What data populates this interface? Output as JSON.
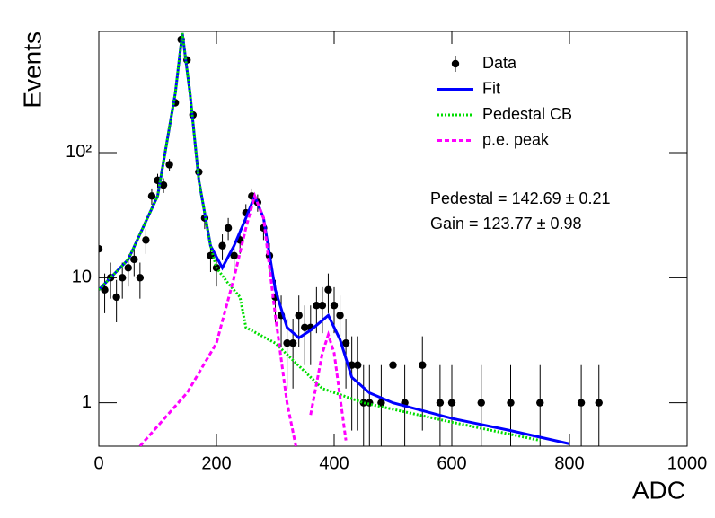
{
  "chart_data": {
    "type": "scatter",
    "xlabel": "ADC",
    "ylabel": "Events",
    "xlim": [
      0,
      1000
    ],
    "xticks": [
      0,
      200,
      400,
      600,
      800,
      1000
    ],
    "ylim": [
      0.45,
      930
    ],
    "ylog": true,
    "yticks": [
      1,
      10,
      {
        "value": 100,
        "label": "10²"
      }
    ],
    "legend": "upper right",
    "annotations": [
      "Pedestal = 142.69 ± 0.21",
      "Gain = 123.77 ± 0.98"
    ],
    "series": [
      {
        "name": "Data",
        "kind": "points",
        "color": "#000000",
        "x": [
          0,
          10,
          20,
          30,
          40,
          50,
          60,
          70,
          80,
          90,
          100,
          110,
          120,
          130,
          140,
          150,
          160,
          170,
          180,
          190,
          200,
          210,
          220,
          230,
          240,
          250,
          260,
          270,
          280,
          290,
          300,
          310,
          320,
          330,
          340,
          350,
          360,
          370,
          380,
          390,
          400,
          410,
          420,
          430,
          440,
          450,
          460,
          480,
          500,
          520,
          550,
          580,
          600,
          650,
          700,
          750,
          820,
          850
        ],
        "values": [
          17,
          8,
          10,
          7,
          10,
          12,
          14,
          10,
          20,
          45,
          60,
          55,
          80,
          250,
          800,
          550,
          200,
          70,
          30,
          15,
          12,
          18,
          25,
          15,
          20,
          33,
          45,
          40,
          25,
          15,
          7,
          5,
          3,
          3,
          5,
          4,
          4,
          6,
          6,
          8,
          6,
          5,
          3,
          2,
          2,
          1,
          1,
          1,
          2,
          1,
          2,
          1,
          1,
          1,
          1,
          1,
          1,
          1
        ],
        "errors": [
          4.1,
          2.8,
          3.2,
          2.6,
          3.2,
          3.5,
          3.7,
          3.2,
          4.5,
          6.7,
          7.7,
          7.4,
          8.9,
          15.8,
          28.3,
          23.5,
          14.1,
          8.4,
          5.5,
          3.9,
          3.5,
          4.2,
          5,
          3.9,
          4.5,
          5.7,
          6.7,
          6.3,
          5,
          3.9,
          2.6,
          2.2,
          1.7,
          1.7,
          2.2,
          2,
          2,
          2.4,
          2.4,
          2.8,
          2.4,
          2.2,
          1.7,
          1.4,
          1.4,
          1,
          1,
          1,
          1.4,
          1,
          1.4,
          1,
          1,
          1,
          1,
          1,
          1,
          1
        ]
      },
      {
        "name": "Fit",
        "kind": "line",
        "dash": "solid",
        "color": "#0000ff",
        "x": [
          0,
          50,
          100,
          130,
          142,
          155,
          170,
          190,
          210,
          230,
          250,
          265,
          280,
          300,
          320,
          340,
          360,
          390,
          410,
          430,
          460,
          500,
          600,
          700,
          800
        ],
        "values": [
          8,
          14,
          45,
          300,
          900,
          300,
          60,
          18,
          12,
          18,
          30,
          45,
          30,
          8,
          4,
          3.3,
          3.8,
          5,
          3.2,
          1.6,
          1.2,
          1,
          0.75,
          0.6,
          0.47
        ]
      },
      {
        "name": "Pedestal CB",
        "kind": "line",
        "dash": "dotted",
        "color": "#00dd00",
        "x": [
          0,
          50,
          100,
          130,
          142,
          155,
          170,
          190,
          200,
          220,
          240,
          250,
          300,
          380,
          450,
          600,
          750
        ],
        "values": [
          8,
          14,
          45,
          300,
          900,
          300,
          60,
          18,
          12,
          9,
          7,
          4,
          3,
          1.3,
          1,
          0.7,
          0.5
        ]
      },
      {
        "name": "p.e. peak",
        "kind": "line",
        "dash": "dashed",
        "color": "#ff00ff",
        "x": [
          70,
          150,
          200,
          230,
          250,
          265,
          280,
          300,
          320,
          335,
          345,
          360,
          380,
          390,
          400,
          420
        ],
        "values": [
          0.45,
          1.2,
          3,
          10,
          25,
          45,
          30,
          5,
          1,
          0.45,
          null,
          0.8,
          2.5,
          3.5,
          2.5,
          0.5
        ]
      }
    ]
  }
}
